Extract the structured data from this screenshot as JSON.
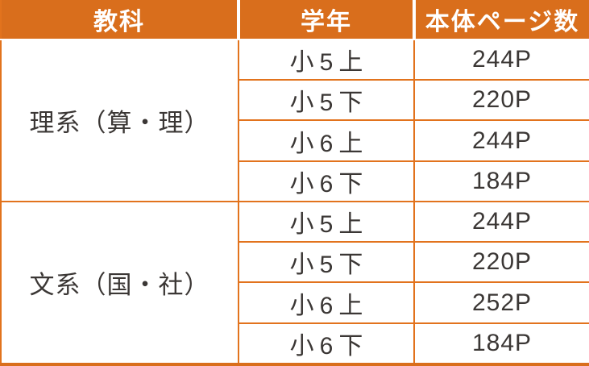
{
  "colors": {
    "header_bg": "#D96E1C",
    "border": "#E2731D",
    "header_text": "#FFFFFF",
    "body_text": "#3B3735"
  },
  "table": {
    "headers": [
      "教科",
      "学年",
      "本体ページ数"
    ],
    "groups": [
      {
        "subject": "理系（算・理）",
        "rows": [
          {
            "grade": "小5上",
            "pages": "244P"
          },
          {
            "grade": "小5下",
            "pages": "220P"
          },
          {
            "grade": "小6上",
            "pages": "244P"
          },
          {
            "grade": "小6下",
            "pages": "184P"
          }
        ]
      },
      {
        "subject": "文系（国・社）",
        "rows": [
          {
            "grade": "小5上",
            "pages": "244P"
          },
          {
            "grade": "小5下",
            "pages": "220P"
          },
          {
            "grade": "小6上",
            "pages": "252P"
          },
          {
            "grade": "小6下",
            "pages": "184P"
          }
        ]
      }
    ]
  }
}
